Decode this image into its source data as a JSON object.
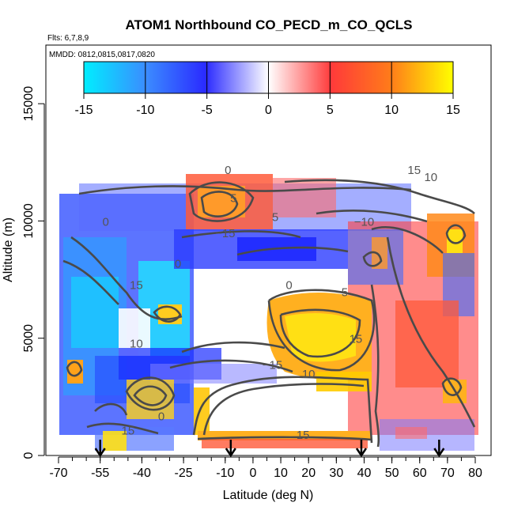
{
  "chart_data": {
    "type": "heatmap",
    "title": "ATOM1 Northbound CO_PECD_m_CO_QCLS",
    "flights_label": "Flts: 6,7,8,9",
    "dates_label": "MMDD: 0812,0815,0817,0820",
    "xlabel": "Latitude (deg N)",
    "ylabel": "Altitude (m)",
    "xlim": [
      -70,
      80
    ],
    "ylim": [
      0,
      17500
    ],
    "x_ticks": [
      -70,
      -55,
      -40,
      -25,
      -10,
      0,
      10,
      20,
      30,
      40,
      50,
      60,
      70,
      80
    ],
    "y_ticks": [
      0,
      5000,
      10000,
      15000
    ],
    "colorbar": {
      "min": -15,
      "max": 15,
      "ticks": [
        -15,
        -10,
        -5,
        0,
        5,
        10,
        15
      ],
      "colors": [
        "#00e5ff",
        "#3a7bff",
        "#2b2bff",
        "#ffffff",
        "#ff3b3b",
        "#ff7a1a",
        "#ffff00"
      ]
    },
    "contour_labels": [
      {
        "text": "15",
        "x": 58,
        "y": 12000
      },
      {
        "text": "10",
        "x": 64,
        "y": 11700
      },
      {
        "text": "0",
        "x": -9,
        "y": 12000
      },
      {
        "text": "5",
        "x": -7,
        "y": 10800
      },
      {
        "text": "5",
        "x": 8,
        "y": 10000
      },
      {
        "text": "−10",
        "x": 40,
        "y": 9800
      },
      {
        "text": "−15",
        "x": -10,
        "y": 9300
      },
      {
        "text": "0",
        "x": -53,
        "y": 9800
      },
      {
        "text": "0",
        "x": -27,
        "y": 8000
      },
      {
        "text": "15",
        "x": -42,
        "y": 7100
      },
      {
        "text": "0",
        "x": 13,
        "y": 7100
      },
      {
        "text": "5",
        "x": 33,
        "y": 6800
      },
      {
        "text": "15",
        "x": 37,
        "y": 4800
      },
      {
        "text": "10",
        "x": -42,
        "y": 4600
      },
      {
        "text": "−15",
        "x": 7,
        "y": 3700
      },
      {
        "text": "10",
        "x": 20,
        "y": 3300
      },
      {
        "text": "0",
        "x": -33,
        "y": 1500
      },
      {
        "text": "15",
        "x": 18,
        "y": 700
      },
      {
        "text": "15",
        "x": -45,
        "y": 900
      }
    ],
    "flight_markers_lat": [
      -55,
      -8,
      39,
      67
    ]
  }
}
